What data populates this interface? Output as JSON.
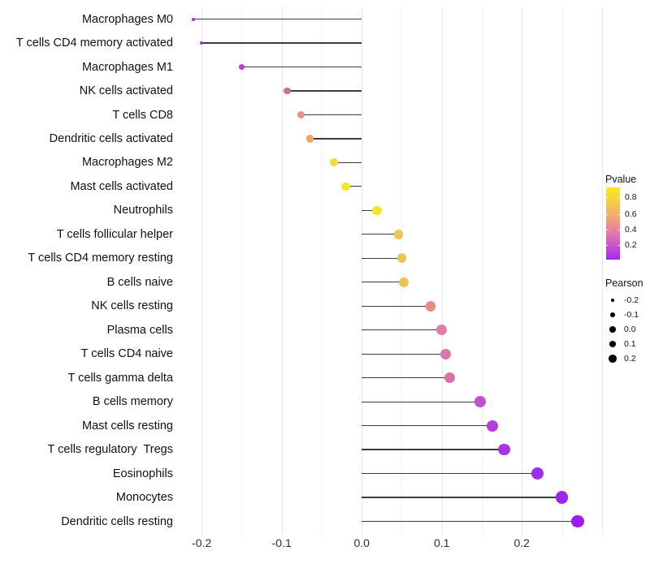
{
  "chart_data": {
    "type": "scatter",
    "variant": "lollipop",
    "title": "",
    "xlabel": "",
    "ylabel": "",
    "xlim": [
      -0.235,
      0.3
    ],
    "grid": "vertical gridlines every 0.05, light gray, white background",
    "gridline_values": [
      -0.2,
      -0.15,
      -0.1,
      -0.05,
      0.0,
      0.05,
      0.1,
      0.15,
      0.2,
      0.25,
      0.3
    ],
    "colors": {
      "background": "#FFFFFF",
      "stem": "#3C3C3C",
      "grid_major": "#E7E7E7",
      "grid_minor": "#F1F1F1"
    },
    "x_ticks": [
      {
        "label": "-0.2",
        "value": -0.2
      },
      {
        "label": "-0.1",
        "value": -0.1
      },
      {
        "label": "0.0",
        "value": 0.0
      },
      {
        "label": "0.1",
        "value": 0.1
      },
      {
        "label": "0.2",
        "value": 0.2
      }
    ],
    "rows": [
      {
        "label": "Macrophages M0",
        "pearson": -0.21,
        "color": "#A233DA"
      },
      {
        "label": "T cells CD4 memory activated",
        "pearson": -0.2,
        "color": "#A032DC"
      },
      {
        "label": "Macrophages M1",
        "pearson": -0.15,
        "color": "#B440D6"
      },
      {
        "label": "NK cells activated",
        "pearson": -0.093,
        "color": "#D4717F"
      },
      {
        "label": "T cells CD8",
        "pearson": -0.076,
        "color": "#E8927A"
      },
      {
        "label": "Dendritic cells activated",
        "pearson": -0.065,
        "color": "#EFA766"
      },
      {
        "label": "Macrophages M2",
        "pearson": -0.035,
        "color": "#F2DC3D"
      },
      {
        "label": "Mast cells activated",
        "pearson": -0.02,
        "color": "#F5E723"
      },
      {
        "label": "Neutrophils",
        "pearson": 0.019,
        "color": "#F4E626"
      },
      {
        "label": "T cells follicular helper",
        "pearson": 0.046,
        "color": "#EEC655"
      },
      {
        "label": "T cells CD4 memory resting",
        "pearson": 0.05,
        "color": "#EEC453"
      },
      {
        "label": "B cells naive",
        "pearson": 0.053,
        "color": "#EDC257"
      },
      {
        "label": "NK cells resting",
        "pearson": 0.086,
        "color": "#E78B7E"
      },
      {
        "label": "Plasma cells",
        "pearson": 0.1,
        "color": "#E07DA6"
      },
      {
        "label": "T cells CD4 naive",
        "pearson": 0.105,
        "color": "#DB76A9"
      },
      {
        "label": "T cells gamma delta",
        "pearson": 0.11,
        "color": "#D970AD"
      },
      {
        "label": "B cells memory",
        "pearson": 0.148,
        "color": "#C24FCB"
      },
      {
        "label": "Mast cells resting",
        "pearson": 0.163,
        "color": "#B53EDA"
      },
      {
        "label": "T cells regulatory  Tregs",
        "pearson": 0.178,
        "color": "#AB35E3"
      },
      {
        "label": "Eosinophils",
        "pearson": 0.22,
        "color": "#A02BEA"
      },
      {
        "label": "Monocytes",
        "pearson": 0.25,
        "color": "#9E25ED"
      },
      {
        "label": "Dendritic cells resting",
        "pearson": 0.27,
        "color": "#9B1CEF"
      }
    ]
  },
  "legend": {
    "pvalue": {
      "title": "Pvalue",
      "ticks": [
        {
          "label": "0.8"
        },
        {
          "label": "0.6"
        },
        {
          "label": "0.4"
        },
        {
          "label": "0.2"
        }
      ],
      "gradient": [
        "#F9E721 0%",
        "#F7CF44 18%",
        "#F2AE6B 38%",
        "#EC8F8C 52%",
        "#E273AE 66%",
        "#C74ED2 82%",
        "#A42BF0 100%"
      ]
    },
    "pearson": {
      "title": "Pearson",
      "entries": [
        {
          "label": "-0.2"
        },
        {
          "label": "-0.1"
        },
        {
          "label": "0.0"
        },
        {
          "label": "0.1"
        },
        {
          "label": "0.2"
        }
      ]
    }
  }
}
